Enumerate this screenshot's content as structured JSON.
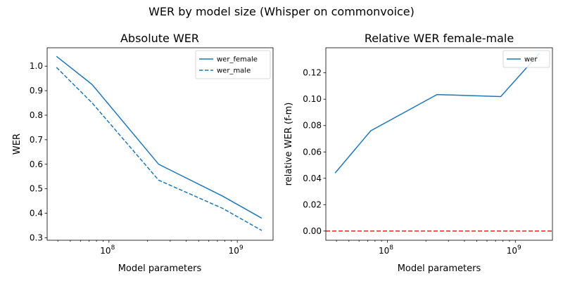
{
  "figure": {
    "suptitle": "WER by model size (Whisper on commonvoice)"
  },
  "chart_data": [
    {
      "type": "line",
      "title": "Absolute WER",
      "xlabel": "Model parameters",
      "ylabel": "WER",
      "xscale": "log",
      "xlim": [
        33000000.0,
        1900000000.0
      ],
      "ylim": [
        0.29,
        1.075
      ],
      "xticks": [
        {
          "value": 100000000.0,
          "base": "10",
          "exp": "8"
        },
        {
          "value": 1000000000.0,
          "base": "10",
          "exp": "9"
        }
      ],
      "yticks": [
        0.3,
        0.4,
        0.5,
        0.6,
        0.7,
        0.8,
        0.9,
        1.0
      ],
      "ytick_labels": [
        "0.3",
        "0.4",
        "0.5",
        "0.6",
        "0.7",
        "0.8",
        "0.9",
        "1.0"
      ],
      "x": [
        39000000,
        74000000,
        244000000,
        769000000,
        1550000000
      ],
      "series": [
        {
          "name": "wer_female",
          "values": [
            1.04,
            0.925,
            0.6,
            0.47,
            0.38
          ],
          "style": "solid",
          "color": "#1f77b4"
        },
        {
          "name": "wer_male",
          "values": [
            0.995,
            0.85,
            0.535,
            0.42,
            0.33
          ],
          "style": "dashed",
          "color": "#1f77b4"
        }
      ],
      "legend": "top-right",
      "grid": false
    },
    {
      "type": "line",
      "title": "Relative WER female-male",
      "xlabel": "Model parameters",
      "ylabel": "relative WER (f-m)",
      "xscale": "log",
      "xlim": [
        33000000.0,
        1950000000.0
      ],
      "ylim": [
        -0.007,
        0.139
      ],
      "xticks": [
        {
          "value": 100000000.0,
          "base": "10",
          "exp": "8"
        },
        {
          "value": 1000000000.0,
          "base": "10",
          "exp": "9"
        }
      ],
      "yticks": [
        0.0,
        0.02,
        0.04,
        0.06,
        0.08,
        0.1,
        0.12
      ],
      "ytick_labels": [
        "0.00",
        "0.02",
        "0.04",
        "0.06",
        "0.08",
        "0.10",
        "0.12"
      ],
      "x": [
        39000000,
        74000000,
        244000000,
        769000000,
        1550000000
      ],
      "series": [
        {
          "name": "wer",
          "values": [
            0.044,
            0.076,
            0.1035,
            0.102,
            0.135
          ],
          "style": "solid",
          "color": "#1f77b4"
        }
      ],
      "reference_line": {
        "y": 0.0,
        "color": "#d62728",
        "style": "dashed"
      },
      "legend": "top-right",
      "grid": false
    }
  ]
}
